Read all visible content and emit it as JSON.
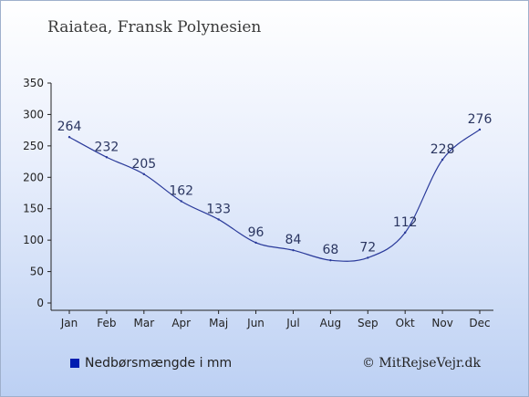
{
  "title": "Raiatea, Fransk Polynesien",
  "legend": {
    "label": "Nedbørsmængde i mm",
    "color": "#001db0"
  },
  "copyright": "© MitRejseVejr.dk",
  "chart_data": {
    "type": "line",
    "categories": [
      "Jan",
      "Feb",
      "Mar",
      "Apr",
      "Maj",
      "Jun",
      "Jul",
      "Aug",
      "Sep",
      "Okt",
      "Nov",
      "Dec"
    ],
    "series": [
      {
        "name": "Nedbørsmængde i mm",
        "values": [
          264,
          232,
          205,
          162,
          133,
          96,
          84,
          68,
          72,
          112,
          228,
          276
        ],
        "color": "#2a3a9a"
      }
    ],
    "yticks": [
      0,
      50,
      100,
      150,
      200,
      250,
      300,
      350
    ],
    "ylim": [
      0,
      350
    ],
    "grid": false
  }
}
